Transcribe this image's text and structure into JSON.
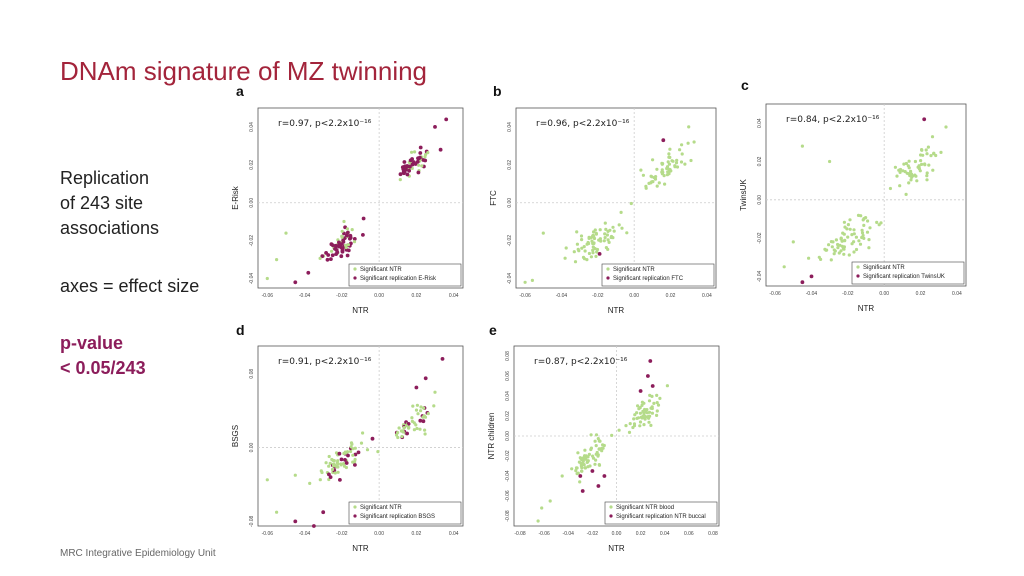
{
  "slide": {
    "title": "DNAm signature of MZ twinning",
    "text_lines": [
      "Replication",
      "of 243 site",
      "associations"
    ],
    "axes_note": "axes = effect size",
    "pvalue_lines": [
      "p-value",
      "< 0.05/243"
    ],
    "footer": "MRC Integrative Epidemiology Unit"
  },
  "colors": {
    "title": "#a3243b",
    "ntr": "#b5db8a",
    "replication": "#8c1d5b",
    "refline": "#cccccc"
  },
  "chart_data": [
    {
      "type": "scatter",
      "panel": "a",
      "annotation": "r=0.97, p<2.2x10⁻¹⁶",
      "xlabel": "NTR",
      "ylabel": "E-Risk",
      "xlim": [
        -0.065,
        0.045
      ],
      "ylim": [
        -0.045,
        0.05
      ],
      "xticks": [
        "-0.06",
        "-0.04",
        "-0.02",
        "0.00",
        "0.02",
        "0.04"
      ],
      "yticks": [
        "-0.04",
        "-0.02",
        "0.00",
        "0.02",
        "0.04"
      ],
      "series": [
        {
          "name": "Significant NTR",
          "cluster": {
            "neg": [
              -0.02,
              -0.022,
              0.005,
              0.006
            ],
            "pos": [
              0.018,
              0.02,
              0.004,
              0.005
            ],
            "rep_frac": 0.65
          },
          "points": [
            [
              -0.06,
              -0.04
            ],
            [
              -0.055,
              -0.03
            ],
            [
              -0.05,
              -0.016
            ]
          ]
        },
        {
          "name": "Significant replication E-Risk",
          "points": [
            [
              -0.045,
              -0.042
            ],
            [
              -0.038,
              -0.037
            ],
            [
              0.03,
              0.04
            ],
            [
              0.036,
              0.044
            ],
            [
              0.033,
              0.028
            ]
          ]
        }
      ],
      "legend": "bottom-right"
    },
    {
      "type": "scatter",
      "panel": "b",
      "annotation": "r=0.96, p<2.2x10⁻¹⁶",
      "xlabel": "NTR",
      "ylabel": "FTC",
      "xlim": [
        -0.065,
        0.045
      ],
      "ylim": [
        -0.045,
        0.05
      ],
      "xticks": [
        "-0.06",
        "-0.04",
        "-0.02",
        "0.00",
        "0.02",
        "0.04"
      ],
      "yticks": [
        "-0.04",
        "-0.02",
        "0.00",
        "0.02",
        "0.04"
      ],
      "series": [
        {
          "name": "Significant NTR",
          "cluster": {
            "neg": [
              -0.021,
              -0.021,
              0.007,
              0.007
            ],
            "pos": [
              0.017,
              0.018,
              0.006,
              0.007
            ],
            "rep_frac": 0.0
          },
          "points": [
            [
              -0.06,
              -0.042
            ],
            [
              -0.056,
              -0.041
            ],
            [
              -0.05,
              -0.016
            ],
            [
              0.03,
              0.04
            ],
            [
              0.025,
              0.028
            ]
          ]
        },
        {
          "name": "Significant replication FTC",
          "points": [
            [
              -0.019,
              -0.027
            ],
            [
              0.016,
              0.033
            ]
          ]
        }
      ],
      "legend": "bottom-right"
    },
    {
      "type": "scatter",
      "panel": "c",
      "annotation": "r=0.84, p<2.2x10⁻¹⁶",
      "xlabel": "NTR",
      "ylabel": "TwinsUK",
      "xlim": [
        -0.065,
        0.045
      ],
      "ylim": [
        -0.045,
        0.05
      ],
      "xticks": [
        "-0.06",
        "-0.04",
        "-0.02",
        "0.00",
        "0.02",
        "0.04"
      ],
      "yticks": [
        "-0.04",
        "-0.02",
        "0.00",
        "0.02",
        "0.04"
      ],
      "series": [
        {
          "name": "Significant NTR",
          "cluster": {
            "neg": [
              -0.02,
              -0.021,
              0.008,
              0.008
            ],
            "pos": [
              0.018,
              0.017,
              0.007,
              0.009
            ],
            "rep_frac": 0.0
          },
          "points": [
            [
              -0.055,
              -0.035
            ],
            [
              -0.05,
              -0.022
            ],
            [
              -0.045,
              0.028
            ],
            [
              -0.03,
              0.02
            ],
            [
              0.034,
              0.038
            ]
          ]
        },
        {
          "name": "Significant replication TwinsUK",
          "points": [
            [
              -0.045,
              -0.043
            ],
            [
              -0.04,
              -0.04
            ],
            [
              -0.015,
              -0.037
            ],
            [
              0.022,
              0.042
            ]
          ]
        }
      ],
      "legend": "bottom-right"
    },
    {
      "type": "scatter",
      "panel": "d",
      "annotation": "r=0.91, p<2.2x10⁻¹⁶",
      "xlabel": "NTR",
      "ylabel": "BSGS",
      "xlim": [
        -0.065,
        0.045
      ],
      "ylim": [
        -0.085,
        0.11
      ],
      "xticks": [
        "-0.06",
        "-0.04",
        "-0.02",
        "0.00",
        "0.02",
        "0.04"
      ],
      "yticks": [
        "-0.08",
        "0.00",
        "0.08"
      ],
      "series": [
        {
          "name": "Significant NTR",
          "cluster": {
            "neg": [
              -0.02,
              -0.015,
              0.006,
              0.013
            ],
            "pos": [
              0.017,
              0.025,
              0.006,
              0.013
            ],
            "rep_frac": 0.22
          },
          "points": [
            [
              -0.06,
              -0.035
            ],
            [
              -0.055,
              -0.07
            ],
            [
              -0.045,
              -0.03
            ],
            [
              0.03,
              0.06
            ]
          ]
        },
        {
          "name": "Significant replication BSGS",
          "points": [
            [
              -0.045,
              -0.08
            ],
            [
              -0.035,
              -0.085
            ],
            [
              -0.03,
              -0.07
            ],
            [
              0.034,
              0.096
            ],
            [
              0.02,
              0.065
            ],
            [
              0.025,
              0.075
            ]
          ]
        }
      ],
      "legend": "bottom-right"
    },
    {
      "type": "scatter",
      "panel": "e",
      "annotation": "r=0.87, p<2.2x10⁻¹⁶",
      "xlabel": "NTR",
      "ylabel": "NTR children",
      "xlim": [
        -0.085,
        0.085
      ],
      "ylim": [
        -0.09,
        0.09
      ],
      "xticks": [
        "-0.08",
        "-0.06",
        "-0.04",
        "-0.02",
        "0.00",
        "0.02",
        "0.04",
        "0.06",
        "0.08"
      ],
      "yticks": [
        "-0.08",
        "-0.06",
        "-0.04",
        "-0.02",
        "0.00",
        "0.02",
        "0.04",
        "0.06",
        "0.08"
      ],
      "series": [
        {
          "name": "Significant NTR blood",
          "cluster": {
            "neg": [
              -0.023,
              -0.022,
              0.008,
              0.013
            ],
            "pos": [
              0.024,
              0.022,
              0.007,
              0.013
            ],
            "rep_frac": 0.0
          },
          "points": [
            [
              -0.065,
              -0.085
            ],
            [
              -0.062,
              -0.072
            ],
            [
              -0.055,
              -0.065
            ],
            [
              -0.045,
              -0.04
            ]
          ]
        },
        {
          "name": "Significant replication NTR buccal",
          "points": [
            [
              -0.03,
              -0.04
            ],
            [
              -0.028,
              -0.055
            ],
            [
              -0.02,
              -0.035
            ],
            [
              -0.015,
              -0.05
            ],
            [
              -0.01,
              -0.04
            ],
            [
              0.028,
              0.075
            ],
            [
              0.026,
              0.06
            ],
            [
              0.02,
              0.045
            ],
            [
              0.03,
              0.05
            ]
          ]
        }
      ],
      "legend": "bottom-right"
    }
  ]
}
